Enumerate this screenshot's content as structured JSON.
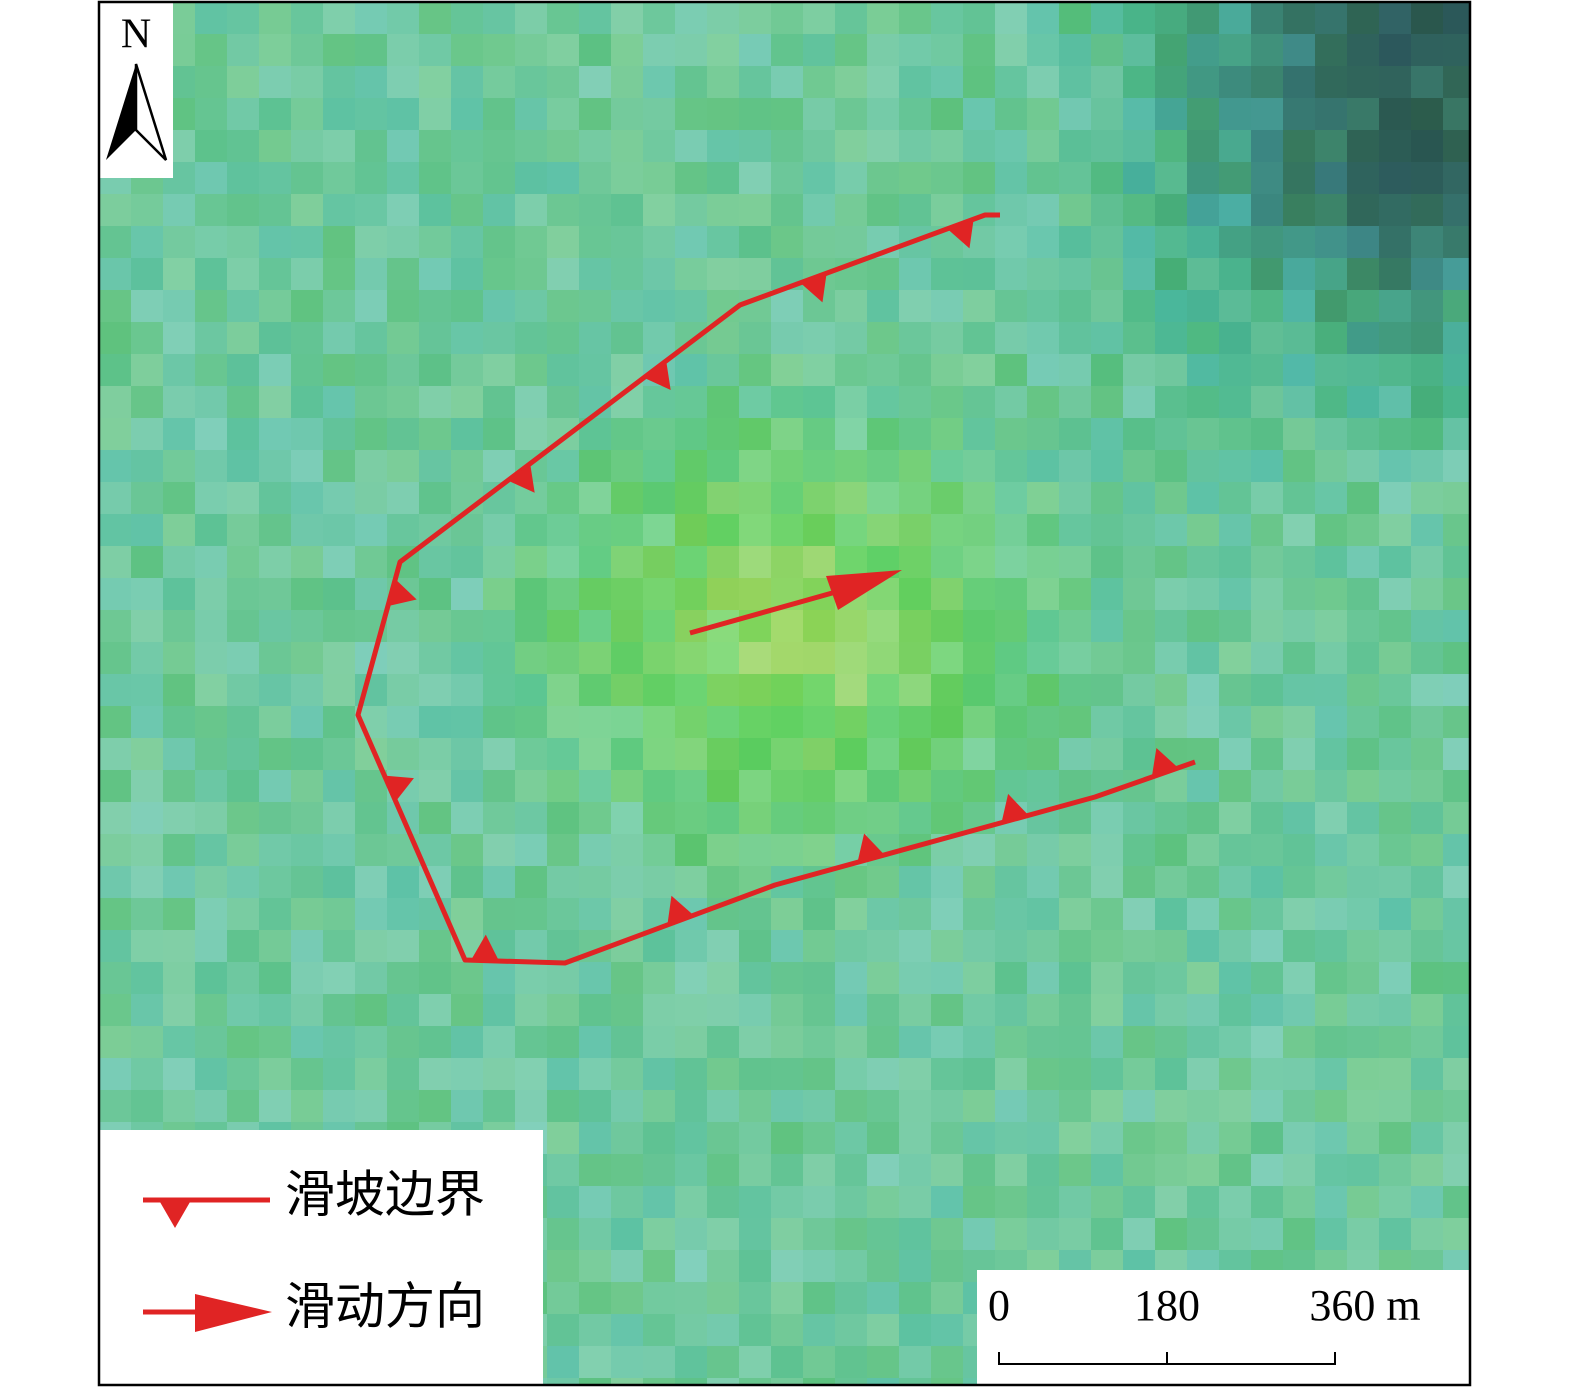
{
  "north_label": "N",
  "legend": [
    {
      "label": "滑坡边界"
    },
    {
      "label": "滑动方向"
    }
  ],
  "scale_bar": {
    "labels": [
      "0",
      "180",
      "360 m"
    ]
  }
}
